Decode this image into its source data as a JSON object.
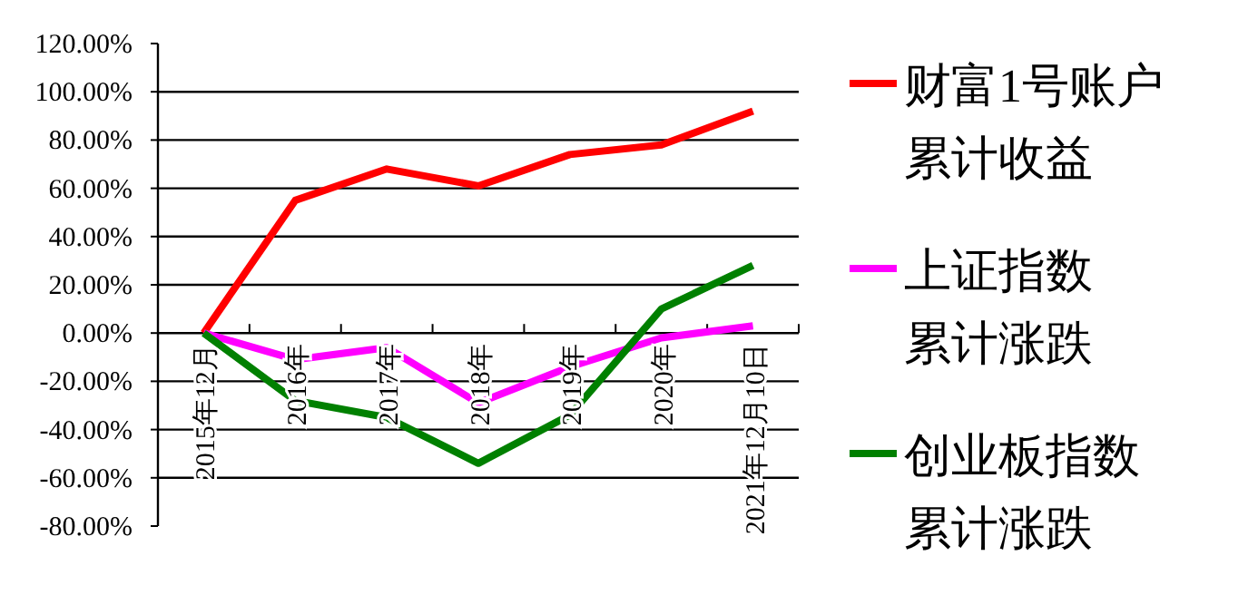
{
  "chart_data": {
    "type": "line",
    "categories": [
      "2015年12月",
      "2016年",
      "2017年",
      "2018年",
      "2019年",
      "2020年",
      "2021年12月10日"
    ],
    "series": [
      {
        "name": "财富1号账户累计收益",
        "color": "#ff0000",
        "values": [
          0,
          55,
          68,
          61,
          74,
          78,
          92
        ]
      },
      {
        "name": "上证指数累计涨跌",
        "color": "#ff00ff",
        "values": [
          0,
          -11,
          -6,
          -29,
          -14,
          -2,
          3
        ]
      },
      {
        "name": "创业板指数累计涨跌",
        "color": "#008000",
        "values": [
          0,
          -28,
          -35,
          -54,
          -34,
          10,
          28
        ]
      }
    ],
    "ylim": [
      -80,
      120
    ],
    "yticks": [
      {
        "value": -80,
        "label": "-80.00%"
      },
      {
        "value": -60,
        "label": "-60.00%"
      },
      {
        "value": -40,
        "label": "-40.00%"
      },
      {
        "value": -20,
        "label": "-20.00%"
      },
      {
        "value": 0,
        "label": "0.00%"
      },
      {
        "value": 20,
        "label": "20.00%"
      },
      {
        "value": 40,
        "label": "40.00%"
      },
      {
        "value": 60,
        "label": "60.00%"
      },
      {
        "value": 80,
        "label": "80.00%"
      },
      {
        "value": 100,
        "label": "100.00%"
      },
      {
        "value": 120,
        "label": "120.00%"
      }
    ],
    "grid": "y",
    "legend": "right",
    "marker": "none",
    "line_style": "solid"
  }
}
